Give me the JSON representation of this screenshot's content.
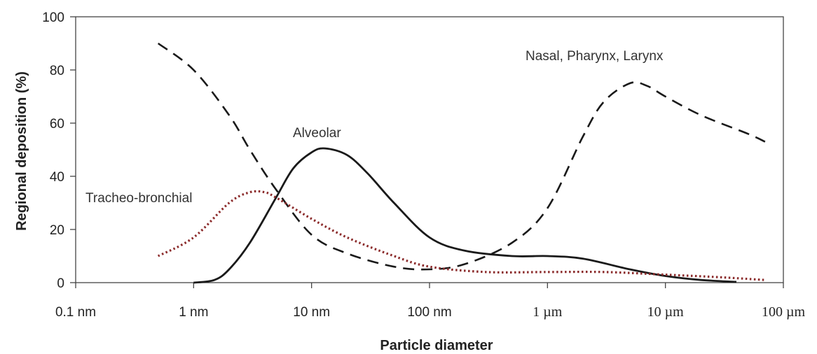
{
  "chart_data": {
    "type": "line",
    "title": "",
    "xlabel": "Particle diameter",
    "ylabel": "Regional deposition (%)",
    "xscale": "log",
    "xlim_nm": [
      0.1,
      100000
    ],
    "ylim": [
      0,
      100
    ],
    "yticks": [
      0,
      20,
      40,
      60,
      80,
      100
    ],
    "xticks": [
      {
        "value_nm": 0.1,
        "label": "0.1 nm",
        "font": "sans"
      },
      {
        "value_nm": 1,
        "label": "1 nm",
        "font": "sans"
      },
      {
        "value_nm": 10,
        "label": "10 nm",
        "font": "sans"
      },
      {
        "value_nm": 100,
        "label": "100 nm",
        "font": "sans"
      },
      {
        "value_nm": 1000,
        "label": "1 µm",
        "font": "serif"
      },
      {
        "value_nm": 10000,
        "label": "10 µm",
        "font": "serif"
      },
      {
        "value_nm": 100000,
        "label": "100 µm",
        "font": "serif"
      }
    ],
    "grid": false,
    "series": [
      {
        "name": "Nasal, Pharynx, Larynx",
        "style": "dashed",
        "color": "#1a1a1a",
        "x_nm": [
          0.5,
          1,
          2,
          3,
          5,
          10,
          20,
          50,
          100,
          200,
          500,
          1000,
          2000,
          3000,
          5000,
          7000,
          10000,
          20000,
          50000,
          70000
        ],
        "y": [
          90,
          80,
          63,
          50,
          35,
          18,
          11,
          6,
          5,
          7,
          15,
          28,
          55,
          68,
          75,
          74,
          70,
          63,
          56,
          53
        ]
      },
      {
        "name": "Alveolar",
        "style": "solid",
        "color": "#1a1a1a",
        "x_nm": [
          1,
          1.5,
          2,
          3,
          5,
          7,
          10,
          13,
          20,
          30,
          50,
          100,
          200,
          500,
          1000,
          2000,
          5000,
          10000,
          20000,
          40000
        ],
        "y": [
          0,
          1,
          5,
          15,
          32,
          43,
          49,
          50.5,
          48,
          41,
          30,
          17,
          12,
          10,
          10,
          9,
          5,
          2.5,
          1,
          0.3
        ]
      },
      {
        "name": "Tracheo-bronchial",
        "style": "dotted",
        "color": "#8b2b2b",
        "x_nm": [
          0.5,
          1,
          2,
          3,
          4,
          5,
          10,
          20,
          50,
          100,
          300,
          1000,
          3000,
          10000,
          30000,
          70000
        ],
        "y": [
          10,
          17,
          30,
          34,
          34,
          32,
          24,
          17,
          10,
          6,
          4,
          4,
          4,
          3,
          2,
          1
        ]
      }
    ],
    "annotations": [
      {
        "text": "Nasal, Pharynx, Larynx",
        "series": 0
      },
      {
        "text": "Alveolar",
        "series": 1
      },
      {
        "text": "Tracheo-bronchial",
        "series": 2
      }
    ]
  }
}
